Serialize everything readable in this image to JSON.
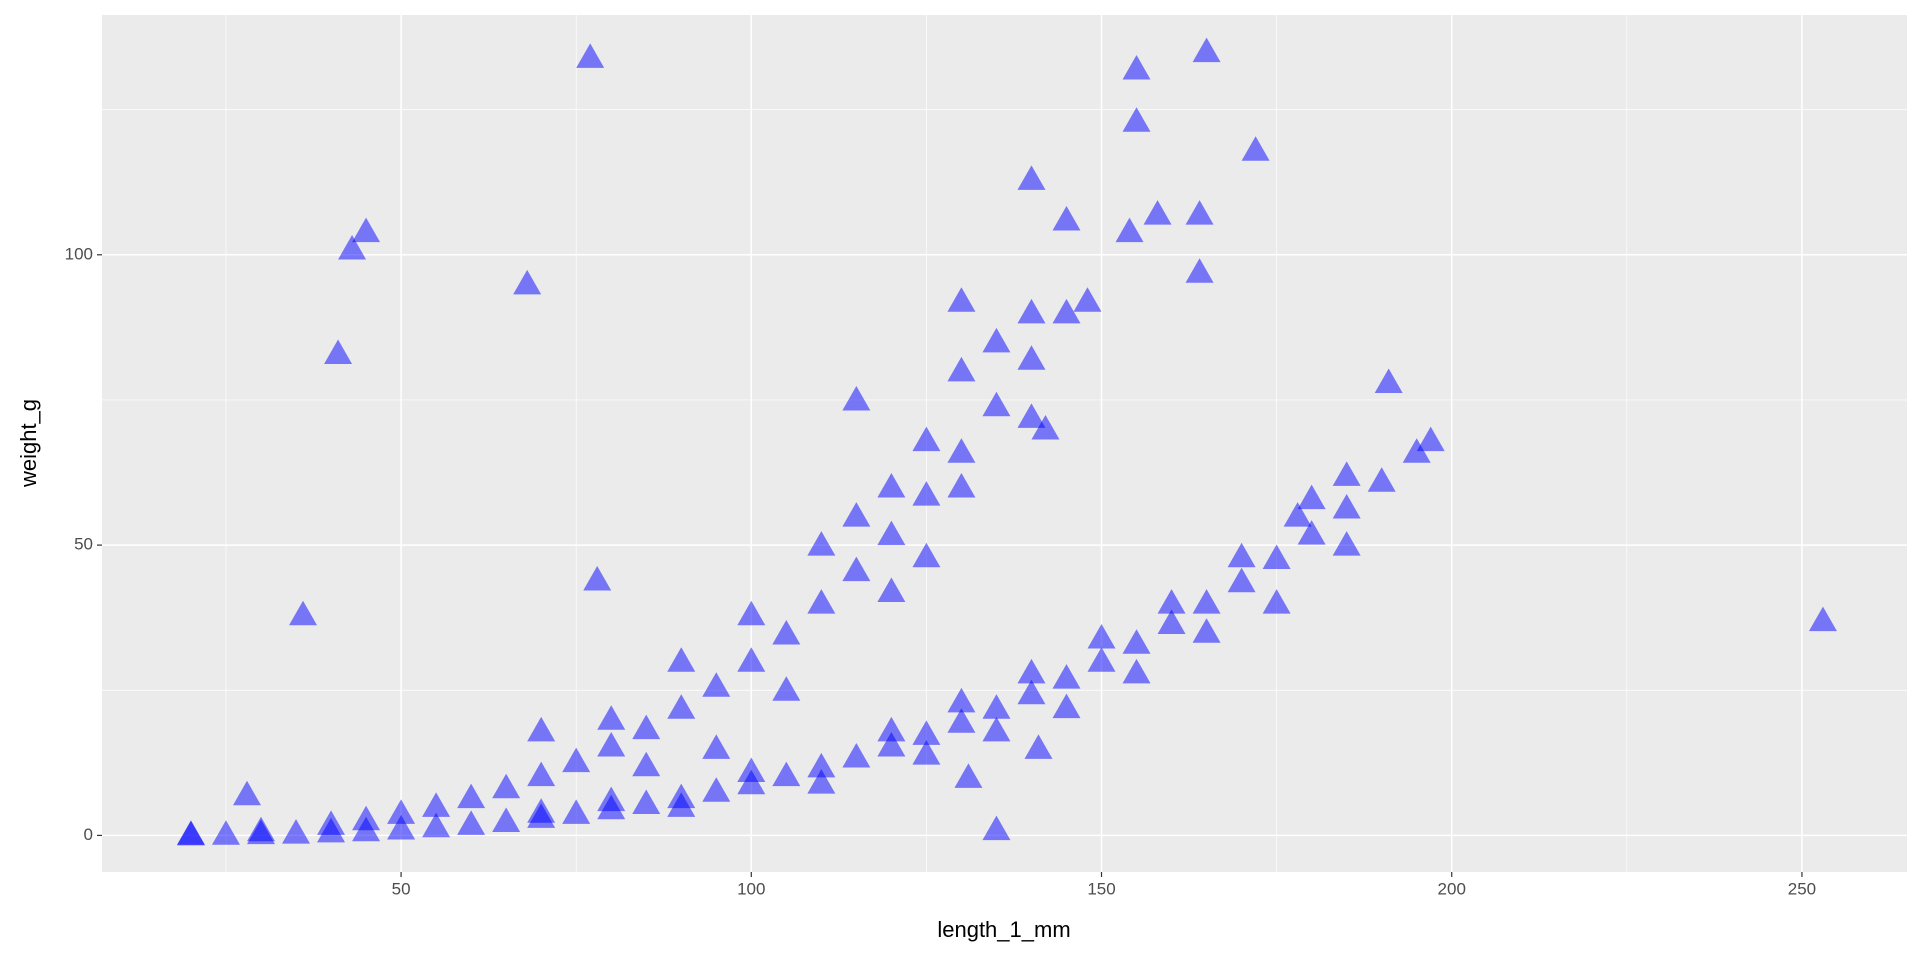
{
  "chart_data": {
    "type": "scatter",
    "x_label": "length_1_mm",
    "y_label": "weight_g",
    "color": "#0000ff",
    "alpha": 0.5,
    "marker": "triangle",
    "grid": true,
    "xlim": [
      7.3,
      265
    ],
    "ylim": [
      -6.3,
      141.3
    ],
    "xticks": [
      50,
      100,
      150,
      200,
      250
    ],
    "yticks": [
      0,
      50,
      100
    ],
    "xminor": [
      25,
      75,
      125,
      175,
      225
    ],
    "yminor": [
      25,
      75,
      125
    ],
    "x": [
      20,
      25,
      30,
      35,
      40,
      45,
      50,
      55,
      60,
      65,
      70,
      75,
      80,
      85,
      90,
      95,
      100,
      105,
      110,
      115,
      120,
      125,
      130,
      135,
      140,
      145,
      150,
      155,
      160,
      165,
      170,
      175,
      180,
      185,
      190,
      195,
      120,
      130,
      140,
      150,
      160,
      170,
      180,
      185,
      175,
      165,
      155,
      145,
      135,
      125,
      110,
      100,
      90,
      80,
      70,
      20,
      30,
      40,
      45,
      50,
      55,
      60,
      65,
      70,
      75,
      80,
      85,
      90,
      95,
      100,
      105,
      110,
      115,
      120,
      125,
      130,
      135,
      140,
      145,
      70,
      80,
      90,
      100,
      110,
      115,
      120,
      125,
      130,
      135,
      140,
      95,
      105,
      85,
      120,
      125,
      130,
      140,
      142,
      130,
      77,
      165,
      155,
      155,
      172,
      140,
      145,
      158,
      164,
      154,
      164,
      45,
      43,
      68,
      41,
      36,
      78,
      253,
      135,
      131,
      141,
      28,
      115,
      191,
      197,
      185,
      178,
      148
    ],
    "values": [
      0.1,
      0.2,
      0.3,
      0.4,
      0.6,
      0.8,
      1.1,
      1.5,
      1.9,
      2.4,
      3.1,
      3.8,
      4.6,
      5.5,
      6.5,
      7.6,
      8.9,
      10.3,
      11.8,
      13.5,
      15.4,
      17.4,
      19.5,
      21.9,
      24.4,
      27.1,
      30,
      33.1,
      36.5,
      40,
      43.7,
      47.7,
      51.9,
      56.4,
      61,
      66,
      18,
      23,
      28,
      34,
      40,
      48,
      58,
      62,
      40,
      35,
      28,
      22,
      18,
      14,
      9,
      11,
      5,
      6,
      4,
      0.2,
      0.8,
      1.9,
      2.7,
      3.8,
      5,
      6.5,
      8.2,
      10.3,
      12.7,
      15.4,
      18.4,
      21.9,
      25.7,
      30,
      34.7,
      40,
      45.6,
      51.8,
      58.6,
      66,
      74,
      82,
      90,
      18,
      20,
      30,
      38,
      50,
      55,
      60,
      68,
      80,
      85,
      90,
      15,
      25,
      12,
      42,
      48,
      60,
      72,
      70,
      92,
      134,
      135,
      132,
      123,
      118,
      113,
      106,
      107,
      107,
      104,
      97,
      104,
      101,
      95,
      83,
      38,
      44,
      37,
      1,
      10,
      15,
      7,
      75,
      78,
      68,
      50,
      55,
      92
    ]
  }
}
